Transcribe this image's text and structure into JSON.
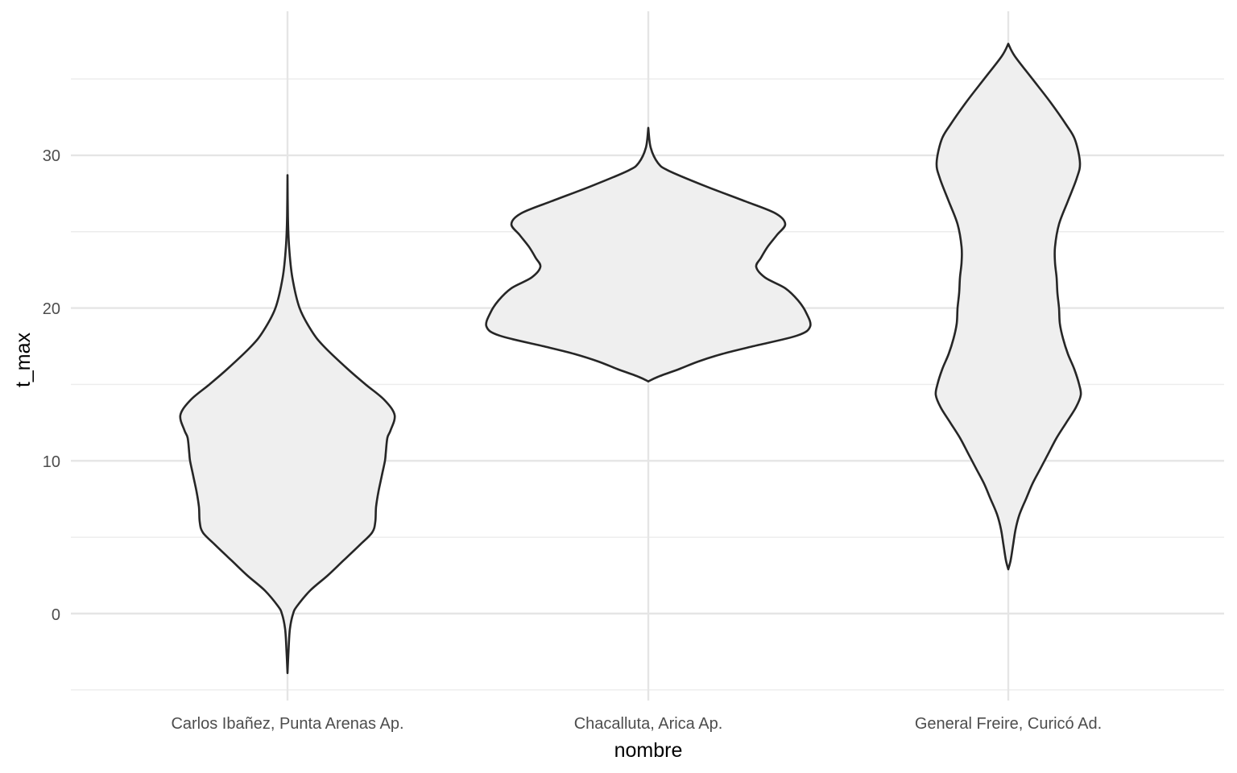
{
  "chart_data": {
    "type": "violin",
    "title": "",
    "xlabel": "nombre",
    "ylabel": "t_max",
    "categories": [
      "Carlos Ibañez, Punta Arenas Ap.",
      "Chacalluta, Arica Ap.",
      "General Freire, Curicó Ad."
    ],
    "ylim": [
      -5.3,
      39.5
    ],
    "y_ticks": [
      0,
      10,
      20,
      30
    ],
    "y_minor_ticks": [
      -5,
      5,
      15,
      25,
      35
    ],
    "grid": true,
    "legend": null,
    "fill_color": "#efefef",
    "outline_color": "#262626",
    "series": [
      {
        "name": "Carlos Ibañez, Punta Arenas Ap.",
        "min": -3.9,
        "max": 28.7,
        "mode": 13.0,
        "profile": [
          [
            28.7,
            0
          ],
          [
            26,
            0.5
          ],
          [
            24,
            2
          ],
          [
            22,
            6
          ],
          [
            20,
            15
          ],
          [
            18.5,
            30
          ],
          [
            17.5,
            45
          ],
          [
            16,
            75
          ],
          [
            15,
            97
          ],
          [
            14,
            120
          ],
          [
            13,
            133
          ],
          [
            12,
            128
          ],
          [
            11.5,
            124
          ],
          [
            10.5,
            122
          ],
          [
            10,
            121
          ],
          [
            9,
            117
          ],
          [
            8,
            113
          ],
          [
            7,
            110
          ],
          [
            6,
            109
          ],
          [
            5.3,
            105
          ],
          [
            4.5,
            90
          ],
          [
            3.5,
            70
          ],
          [
            2.5,
            50
          ],
          [
            1.5,
            28
          ],
          [
            0.5,
            12
          ],
          [
            0,
            7
          ],
          [
            -1,
            3
          ],
          [
            -2.5,
            1.2
          ],
          [
            -3.9,
            0
          ]
        ]
      },
      {
        "name": "Chacalluta, Arica Ap.",
        "min": 15.2,
        "max": 31.8,
        "mode": 18.8,
        "profile": [
          [
            31.8,
            0
          ],
          [
            30.5,
            3
          ],
          [
            29.5,
            12
          ],
          [
            29,
            25
          ],
          [
            28,
            70
          ],
          [
            27,
            120
          ],
          [
            26.2,
            158
          ],
          [
            25.5,
            170
          ],
          [
            24.8,
            160
          ],
          [
            24,
            148
          ],
          [
            23.3,
            140
          ],
          [
            22.7,
            134
          ],
          [
            22,
            145
          ],
          [
            21.3,
            170
          ],
          [
            20.5,
            186
          ],
          [
            19.7,
            196
          ],
          [
            18.8,
            201
          ],
          [
            18.2,
            185
          ],
          [
            17.5,
            130
          ],
          [
            17,
            92
          ],
          [
            16.5,
            62
          ],
          [
            16,
            38
          ],
          [
            15.5,
            12
          ],
          [
            15.2,
            0
          ]
        ]
      },
      {
        "name": "General Freire, Curicó Ad.",
        "min": 2.9,
        "max": 37.3,
        "mode": 29.5,
        "profile": [
          [
            37.3,
            0
          ],
          [
            36.5,
            8
          ],
          [
            35,
            30
          ],
          [
            33.5,
            52
          ],
          [
            32,
            72
          ],
          [
            31,
            83
          ],
          [
            29.5,
            89
          ],
          [
            28.5,
            85
          ],
          [
            27,
            74
          ],
          [
            25.5,
            63
          ],
          [
            24,
            58
          ],
          [
            23,
            58
          ],
          [
            22,
            60
          ],
          [
            21,
            61
          ],
          [
            20,
            63
          ],
          [
            19,
            64
          ],
          [
            18,
            68
          ],
          [
            17,
            74
          ],
          [
            16,
            82
          ],
          [
            15,
            88
          ],
          [
            14.3,
            90
          ],
          [
            13.5,
            84
          ],
          [
            12.5,
            72
          ],
          [
            11.5,
            60
          ],
          [
            10.5,
            50
          ],
          [
            9.5,
            40
          ],
          [
            8.5,
            30
          ],
          [
            7.5,
            22
          ],
          [
            6.5,
            14
          ],
          [
            5.5,
            9
          ],
          [
            4.5,
            6
          ],
          [
            3.5,
            3
          ],
          [
            2.9,
            0
          ]
        ]
      }
    ]
  },
  "axes": {
    "y_tick_labels": [
      "0",
      "10",
      "20",
      "30"
    ],
    "x_tick_labels": [
      "Carlos Ibañez, Punta Arenas Ap.",
      "Chacalluta, Arica Ap.",
      "General Freire, Curicó Ad."
    ],
    "x_title": "nombre",
    "y_title": "t_max"
  }
}
